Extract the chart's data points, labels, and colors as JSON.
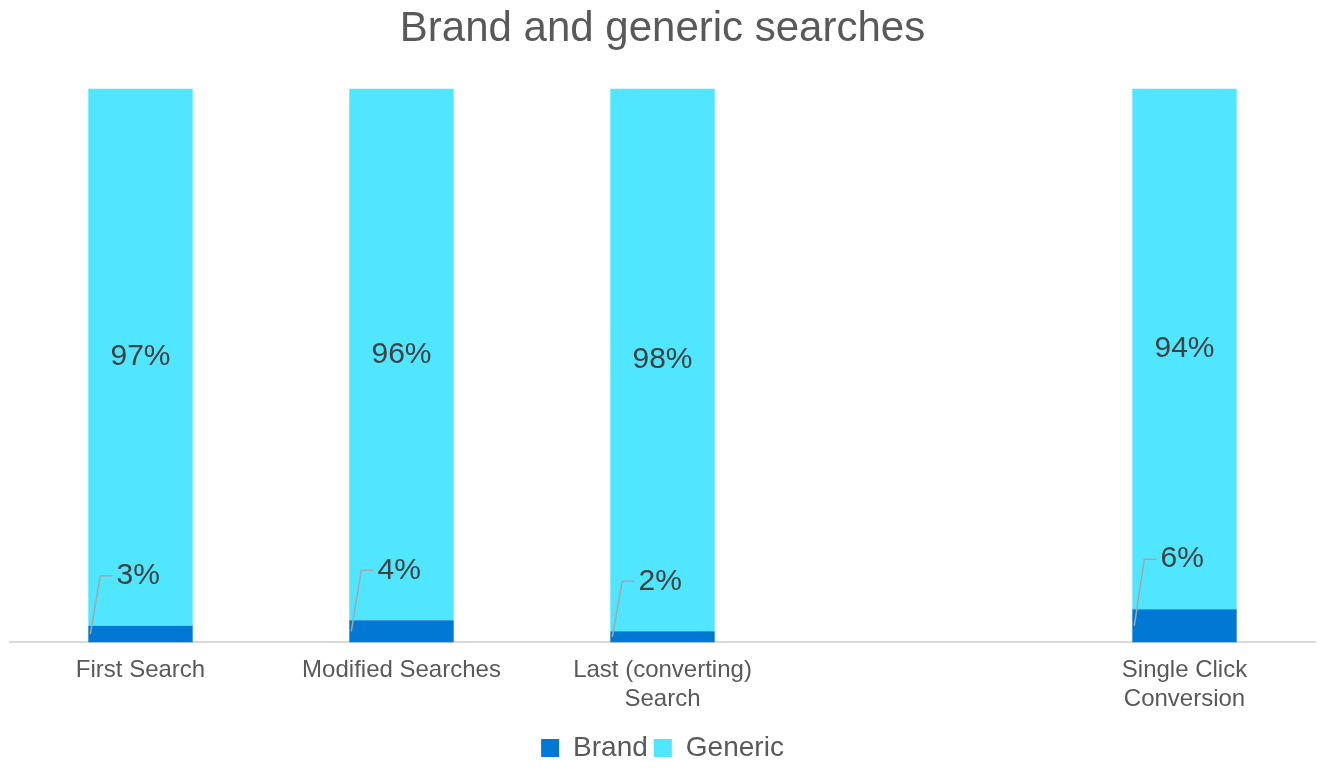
{
  "chart_data": {
    "type": "bar",
    "title": "Brand and generic searches",
    "stacked": true,
    "categories": [
      "First Search",
      "Modified Searches",
      "Last (converting) Search",
      null,
      "Single Click Conversion"
    ],
    "series": [
      {
        "name": "Brand",
        "color": "#0078d4",
        "values": [
          3,
          4,
          2,
          null,
          6
        ],
        "value_labels": [
          "3%",
          "4%",
          "2%",
          null,
          "6%"
        ]
      },
      {
        "name": "Generic",
        "color": "#50e6ff",
        "values": [
          97,
          96,
          98,
          null,
          94
        ],
        "value_labels": [
          "97%",
          "96%",
          "98%",
          null,
          "94%"
        ]
      }
    ],
    "ylim": [
      0,
      100
    ],
    "tick_labels": "x",
    "grid": false,
    "legend": "bottom"
  }
}
